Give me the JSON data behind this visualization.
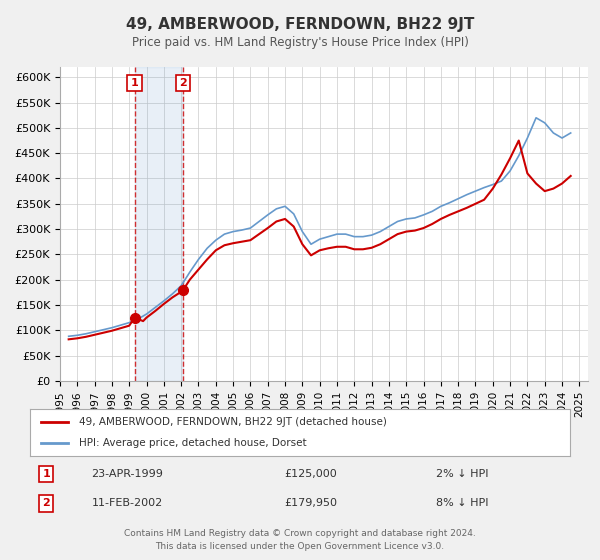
{
  "title": "49, AMBERWOOD, FERNDOWN, BH22 9JT",
  "subtitle": "Price paid vs. HM Land Registry's House Price Index (HPI)",
  "background_color": "#f0f0f0",
  "plot_bg_color": "#ffffff",
  "grid_color": "#cccccc",
  "ylim": [
    0,
    620000
  ],
  "yticks": [
    0,
    50000,
    100000,
    150000,
    200000,
    250000,
    300000,
    350000,
    400000,
    450000,
    500000,
    550000,
    600000
  ],
  "ytick_labels": [
    "£0",
    "£50K",
    "£100K",
    "£150K",
    "£200K",
    "£250K",
    "£300K",
    "£350K",
    "£400K",
    "£450K",
    "£500K",
    "£550K",
    "£600K"
  ],
  "xlim_start": 1995.0,
  "xlim_end": 2025.5,
  "sale1_date": 1999.31,
  "sale1_price": 125000,
  "sale1_label": "1",
  "sale2_date": 2002.12,
  "sale2_price": 179950,
  "sale2_label": "2",
  "annotation_color": "#cc0000",
  "hpi_color": "#6699cc",
  "price_color": "#cc0000",
  "legend_title1": "49, AMBERWOOD, FERNDOWN, BH22 9JT (detached house)",
  "legend_title2": "HPI: Average price, detached house, Dorset",
  "table_row1": [
    "1",
    "23-APR-1999",
    "£125,000",
    "2% ↓ HPI"
  ],
  "table_row2": [
    "2",
    "11-FEB-2002",
    "£179,950",
    "8% ↓ HPI"
  ],
  "footer_line1": "Contains HM Land Registry data © Crown copyright and database right 2024.",
  "footer_line2": "This data is licensed under the Open Government Licence v3.0.",
  "hpi_data": {
    "years": [
      1995.5,
      1996.0,
      1996.5,
      1997.0,
      1997.5,
      1998.0,
      1998.5,
      1999.0,
      1999.5,
      2000.0,
      2000.5,
      2001.0,
      2001.5,
      2002.0,
      2002.5,
      2003.0,
      2003.5,
      2004.0,
      2004.5,
      2005.0,
      2005.5,
      2006.0,
      2006.5,
      2007.0,
      2007.5,
      2008.0,
      2008.5,
      2009.0,
      2009.5,
      2010.0,
      2010.5,
      2011.0,
      2011.5,
      2012.0,
      2012.5,
      2013.0,
      2013.5,
      2014.0,
      2014.5,
      2015.0,
      2015.5,
      2016.0,
      2016.5,
      2017.0,
      2017.5,
      2018.0,
      2018.5,
      2019.0,
      2019.5,
      2020.0,
      2020.5,
      2021.0,
      2021.5,
      2022.0,
      2022.5,
      2023.0,
      2023.5,
      2024.0,
      2024.5
    ],
    "values": [
      88000,
      90000,
      93000,
      97000,
      101000,
      105000,
      110000,
      115000,
      122000,
      132000,
      145000,
      158000,
      172000,
      188000,
      215000,
      240000,
      262000,
      278000,
      290000,
      295000,
      298000,
      302000,
      315000,
      328000,
      340000,
      345000,
      330000,
      295000,
      270000,
      280000,
      285000,
      290000,
      290000,
      285000,
      285000,
      288000,
      295000,
      305000,
      315000,
      320000,
      322000,
      328000,
      335000,
      345000,
      352000,
      360000,
      368000,
      375000,
      382000,
      388000,
      395000,
      415000,
      445000,
      480000,
      520000,
      510000,
      490000,
      480000,
      490000
    ]
  },
  "price_data": {
    "years": [
      1995.5,
      1996.0,
      1996.5,
      1997.0,
      1997.5,
      1998.0,
      1998.5,
      1999.0,
      1999.31,
      1999.8,
      2000.0,
      2000.5,
      2001.0,
      2001.5,
      2002.0,
      2002.12,
      2002.5,
      2003.0,
      2003.5,
      2004.0,
      2004.5,
      2005.0,
      2005.5,
      2006.0,
      2006.5,
      2007.0,
      2007.5,
      2008.0,
      2008.5,
      2009.0,
      2009.5,
      2010.0,
      2010.5,
      2011.0,
      2011.5,
      2012.0,
      2012.5,
      2013.0,
      2013.5,
      2014.0,
      2014.5,
      2015.0,
      2015.5,
      2016.0,
      2016.5,
      2017.0,
      2017.5,
      2018.0,
      2018.5,
      2019.0,
      2019.5,
      2020.0,
      2020.5,
      2021.0,
      2021.5,
      2022.0,
      2022.5,
      2023.0,
      2023.5,
      2024.0,
      2024.5
    ],
    "values": [
      82000,
      84000,
      87000,
      91000,
      95000,
      99000,
      104000,
      109000,
      125000,
      118000,
      125000,
      138000,
      152000,
      165000,
      176000,
      179950,
      200000,
      220000,
      240000,
      258000,
      268000,
      272000,
      275000,
      278000,
      290000,
      302000,
      315000,
      320000,
      305000,
      270000,
      248000,
      258000,
      262000,
      265000,
      265000,
      260000,
      260000,
      263000,
      270000,
      280000,
      290000,
      295000,
      297000,
      302000,
      310000,
      320000,
      328000,
      335000,
      342000,
      350000,
      358000,
      380000,
      408000,
      440000,
      475000,
      410000,
      390000,
      375000,
      380000,
      390000,
      405000
    ]
  }
}
